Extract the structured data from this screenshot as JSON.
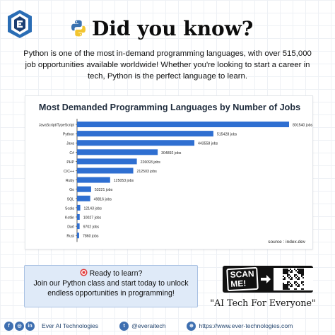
{
  "header": {
    "title": "Did you know?"
  },
  "intro": {
    "text": "Python is one of the most in-demand programming languages, with over 515,000 job opportunities available worldwide! Whether you're looking to start a career in tech, Python is the perfect language to learn."
  },
  "chart_data": {
    "type": "bar",
    "orientation": "horizontal",
    "title": "Most Demanded Programming Languages by Number of Jobs",
    "xlabel": "",
    "ylabel": "",
    "categories": [
      "JavaScript/TypeScript",
      "Python",
      "Java",
      "C#",
      "PHP",
      "C/C++",
      "Ruby",
      "Go",
      "SQL",
      "Scala",
      "Kotlin",
      "Dart",
      "Rust"
    ],
    "values": [
      801540,
      515428,
      443558,
      304892,
      226093,
      212503,
      125053,
      53221,
      49816,
      12143,
      10027,
      9702,
      7860
    ],
    "value_labels": [
      "801540 jobs",
      "515428 jobs",
      "443558 jobs",
      "304892 jobs",
      "226093 jobs",
      "212503 jobs",
      "125053 jobs",
      "53221 jobs",
      "49816 jobs",
      "12143 jobs",
      "10027 jobs",
      "9702 jobs",
      "7860 jobs"
    ],
    "bar_color": "#2f6fd1",
    "grid": false,
    "legend": "none",
    "source": "source : index.dev"
  },
  "cta": {
    "icon": "target-icon",
    "line1": "Ready to learn?",
    "line2": "Join our Python class and start today to unlock",
    "line3": "endless opportunities in programming!"
  },
  "scan": {
    "label_line1": "SCAN",
    "label_line2": "ME!"
  },
  "tagline": "\"AI Tech For Everyone\"",
  "footer": {
    "company": "Ever AI Technologies",
    "handle": "@everaitech",
    "website": "https://www.ever-technologies.com"
  },
  "colors": {
    "accent": "#2f6fd1",
    "logo": "#2a6db5",
    "footer_text": "#24466f"
  }
}
